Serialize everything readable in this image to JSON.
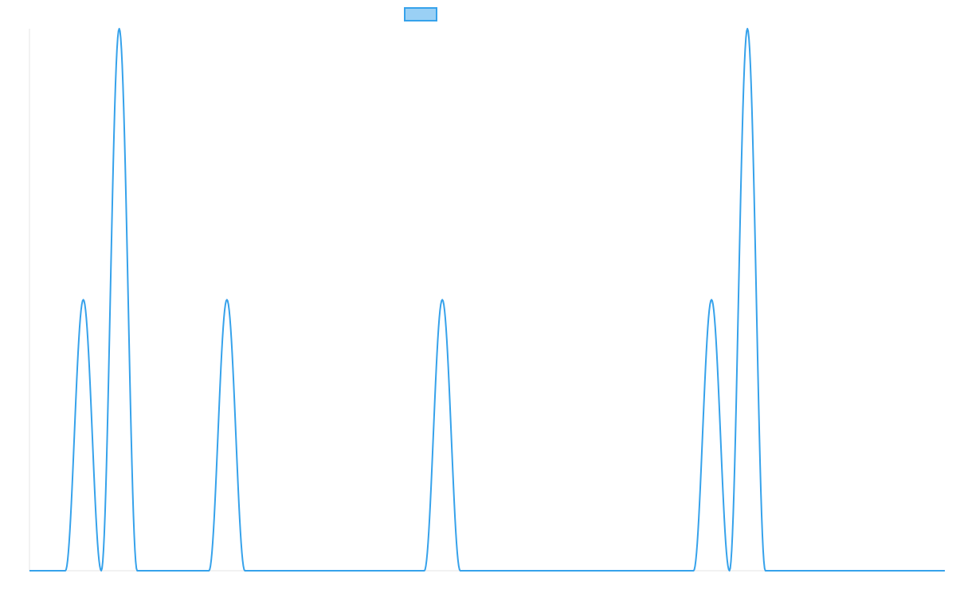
{
  "chart_data": {
    "type": "line",
    "title": "",
    "xlabel": "",
    "ylabel": "",
    "grid": false,
    "legend_placement": "top-center",
    "x_range": [
      0,
      51
    ],
    "y_range": [
      0,
      2
    ],
    "series": [
      {
        "name": "",
        "color": "#36A2EB",
        "fill": "#9AD0F5",
        "peaks": [
          {
            "start": 2,
            "end": 4,
            "height": 1
          },
          {
            "start": 4,
            "end": 6,
            "height": 2
          },
          {
            "start": 10,
            "end": 12,
            "height": 1
          },
          {
            "start": 22,
            "end": 24,
            "height": 1
          },
          {
            "start": 37,
            "end": 39,
            "height": 1
          },
          {
            "start": 39,
            "end": 41,
            "height": 2
          }
        ]
      }
    ]
  }
}
